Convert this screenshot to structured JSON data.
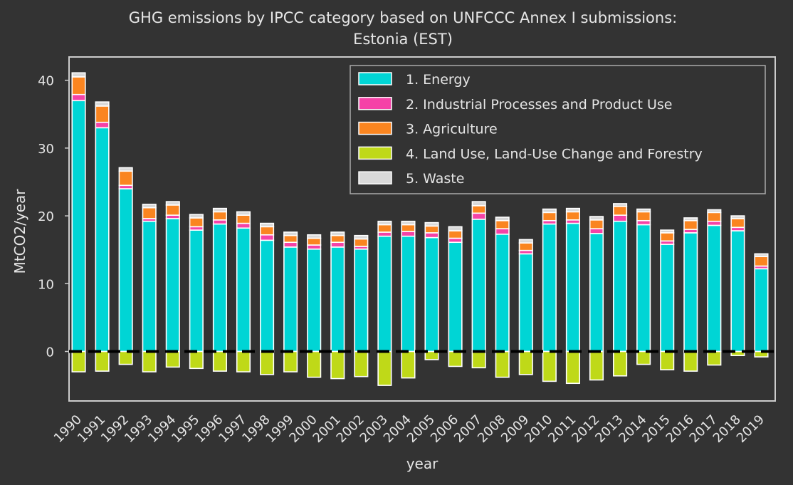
{
  "chart_data": {
    "type": "bar",
    "stacked": true,
    "title": "GHG emissions by IPCC category based on UNFCCC Annex I submissions:",
    "subtitle": "Estonia (EST)",
    "xlabel": "year",
    "ylabel": "MtCO2/year",
    "ylim": [
      -7.5,
      43.5
    ],
    "yticks": [
      0,
      10,
      20,
      30,
      40
    ],
    "legend_position": "top-right",
    "grid": false,
    "background": "#333333",
    "categories": [
      "1990",
      "1991",
      "1992",
      "1993",
      "1994",
      "1995",
      "1996",
      "1997",
      "1998",
      "1999",
      "2000",
      "2001",
      "2002",
      "2003",
      "2004",
      "2005",
      "2006",
      "2007",
      "2008",
      "2009",
      "2010",
      "2011",
      "2012",
      "2013",
      "2014",
      "2015",
      "2016",
      "2017",
      "2018",
      "2019"
    ],
    "series": [
      {
        "name": "1. Energy",
        "color": "#00d5d5",
        "values": [
          37.0,
          33.0,
          24.0,
          19.2,
          19.6,
          17.9,
          18.8,
          18.2,
          16.4,
          15.4,
          15.1,
          15.4,
          15.1,
          17.0,
          17.0,
          16.8,
          16.1,
          19.5,
          17.3,
          14.4,
          18.8,
          18.9,
          17.4,
          19.2,
          18.7,
          15.8,
          17.5,
          18.6,
          17.8,
          12.2
        ]
      },
      {
        "name": "2. Industrial Processes and Product Use",
        "color": "#f542a7",
        "values": [
          0.9,
          0.8,
          0.5,
          0.4,
          0.5,
          0.5,
          0.6,
          0.7,
          0.8,
          0.7,
          0.6,
          0.7,
          0.4,
          0.6,
          0.7,
          0.7,
          0.6,
          0.9,
          0.8,
          0.5,
          0.5,
          0.5,
          0.7,
          0.9,
          0.6,
          0.5,
          0.5,
          0.6,
          0.5,
          0.4
        ]
      },
      {
        "name": "3. Agriculture",
        "color": "#fa8520",
        "values": [
          2.6,
          2.4,
          2.1,
          1.6,
          1.5,
          1.3,
          1.2,
          1.2,
          1.2,
          1.0,
          1.0,
          1.0,
          1.1,
          1.1,
          1.0,
          1.0,
          1.1,
          1.1,
          1.2,
          1.1,
          1.2,
          1.2,
          1.3,
          1.3,
          1.3,
          1.2,
          1.3,
          1.3,
          1.3,
          1.4
        ]
      },
      {
        "name": "4. Land Use, Land-Use Change and Forestry",
        "color": "#bfd918",
        "values": [
          -3.0,
          -2.9,
          -1.9,
          -3.0,
          -2.3,
          -2.5,
          -2.9,
          -3.0,
          -3.4,
          -3.0,
          -3.8,
          -4.0,
          -3.7,
          -5.0,
          -3.9,
          -1.2,
          -2.2,
          -2.4,
          -3.8,
          -3.4,
          -4.4,
          -4.7,
          -4.2,
          -3.6,
          -1.9,
          -2.7,
          -2.9,
          -2.0,
          -0.6,
          -0.8
        ]
      },
      {
        "name": "5. Waste",
        "color": "#d9d9d9",
        "values": [
          0.6,
          0.6,
          0.5,
          0.5,
          0.5,
          0.5,
          0.5,
          0.5,
          0.5,
          0.5,
          0.5,
          0.5,
          0.5,
          0.5,
          0.5,
          0.5,
          0.6,
          0.6,
          0.5,
          0.5,
          0.5,
          0.5,
          0.5,
          0.4,
          0.4,
          0.4,
          0.4,
          0.4,
          0.4,
          0.4
        ]
      }
    ]
  }
}
